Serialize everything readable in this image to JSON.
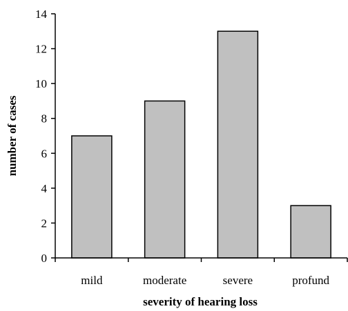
{
  "chart_data": {
    "type": "bar",
    "title": "",
    "xlabel": "severity of hearing loss",
    "ylabel": "number of cases",
    "categories": [
      "mild",
      "moderate",
      "severe",
      "profund"
    ],
    "values": [
      7,
      9,
      13,
      3
    ],
    "ylim": [
      0,
      14
    ],
    "yticks": [
      0,
      2,
      4,
      6,
      8,
      10,
      12,
      14
    ],
    "grid": false,
    "bar_color": "#c0c0c0",
    "bar_edge_color": "#000000"
  }
}
